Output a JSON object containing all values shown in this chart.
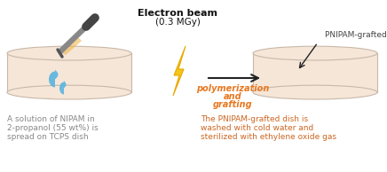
{
  "title_electron_beam": "Electron beam",
  "subtitle_electron_beam": "(0.3 MGy)",
  "arrow_label_line1": "polymerization",
  "arrow_label_line2": "and",
  "arrow_label_line3": "grafting",
  "pnipam_label": "PNIPAM-grafted layer",
  "left_caption_line1": "A solution of NIPAM in",
  "left_caption_line2": "2-propanol (55 wt%) is",
  "left_caption_line3": "spread on TCPS dish",
  "right_caption_line1": "The PNIPAM-grafted dish is",
  "right_caption_line2": "washed with cold water and",
  "right_caption_line3": "sterilized with ethylene oxide gas",
  "bg_color": "#ffffff",
  "dish_fill_color": "#f5e6d8",
  "dish_edge_color": "#c8b8a8",
  "lightning_color1": "#f5c518",
  "lightning_color2": "#e8a800",
  "arrow_color": "#222222",
  "italic_text_color": "#e87820",
  "left_text_color": "#888888",
  "right_text_color": "#cc6622",
  "title_color": "#111111",
  "pnipam_label_color": "#444444",
  "droplet_color": "#5ab4e0",
  "pipette_gray": "#888888",
  "pipette_dark": "#444444",
  "pipette_glow": "#f0b040"
}
